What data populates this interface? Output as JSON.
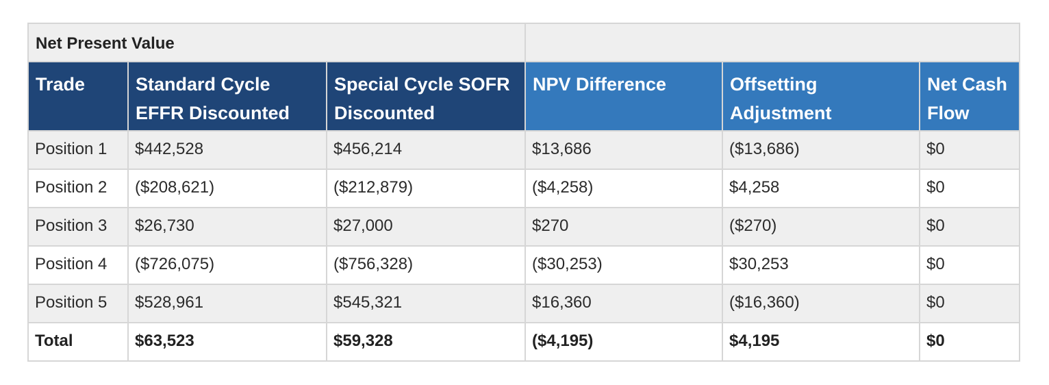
{
  "table": {
    "caption": "Net Present Value",
    "headers": [
      "Trade",
      "Standard Cycle EFFR Discounted",
      "Special Cycle SOFR Discounted",
      "NPV Difference",
      "Offsetting Adjustment",
      "Net Cash Flow"
    ],
    "header_colors": {
      "dark": "#1f4577",
      "light": "#3479bc"
    },
    "rows": [
      [
        "Position 1",
        "$442,528",
        "$456,214",
        "$13,686",
        "($13,686)",
        "$0"
      ],
      [
        "Position 2",
        "($208,621)",
        "($212,879)",
        "($4,258)",
        "$4,258",
        "$0"
      ],
      [
        "Position 3",
        "$26,730",
        "$27,000",
        "$270",
        "($270)",
        "$0"
      ],
      [
        "Position 4",
        "($726,075)",
        "($756,328)",
        "($30,253)",
        "$30,253",
        "$0"
      ],
      [
        "Position 5",
        "$528,961",
        "$545,321",
        "$16,360",
        "($16,360)",
        "$0"
      ]
    ],
    "total": [
      "Total",
      "$63,523",
      "$59,328",
      "($4,195)",
      "$4,195",
      "$0"
    ]
  }
}
